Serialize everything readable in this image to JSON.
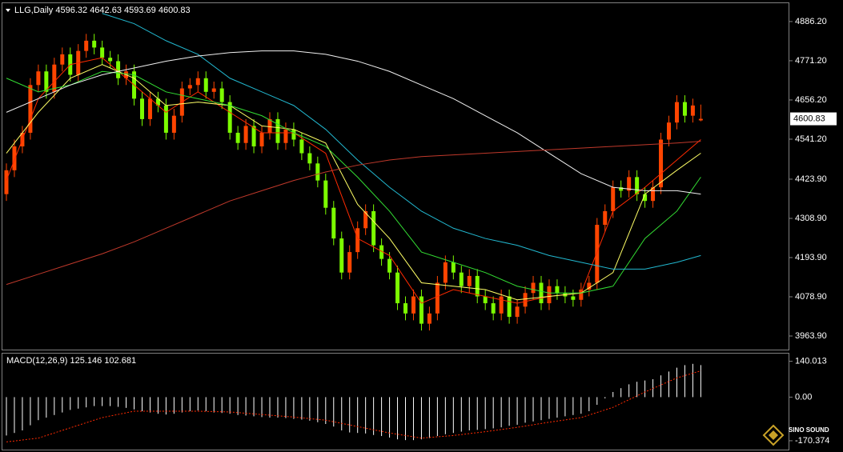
{
  "chart_data": [
    {
      "type": "candlestick",
      "symbol": "LLG,Daily",
      "header_ohlc": [
        4596.32,
        4642.63,
        4593.69,
        4600.83
      ],
      "last_price": 4600.83,
      "up_color": "#ff4500",
      "down_color": "#7cfc00",
      "open": [
        4380,
        4450,
        4520,
        4560,
        4700,
        4740,
        4680,
        4760,
        4790,
        4730,
        4800,
        4830,
        4810,
        4780,
        4770,
        4720,
        4740,
        4660,
        4600,
        4660,
        4640,
        4560,
        4610,
        4690,
        4700,
        4720,
        4680,
        4690,
        4650,
        4560,
        4530,
        4580,
        4520,
        4560,
        4600,
        4530,
        4570,
        4540,
        4500,
        4470,
        4420,
        4340,
        4250,
        4150,
        4210,
        4280,
        4330,
        4230,
        4190,
        4150,
        4060,
        4030,
        4080,
        4000,
        4030,
        4120,
        4180,
        4150,
        4110,
        4140,
        4080,
        4060,
        4030,
        4080,
        4020,
        4050,
        4090,
        4120,
        4060,
        4110,
        4090,
        4080,
        4070,
        4100,
        4120,
        4290,
        4330,
        4400,
        4390,
        4430,
        4380,
        4360,
        4400,
        4540,
        4590,
        4650,
        4610,
        4596.32
      ],
      "high": [
        4470,
        4540,
        4580,
        4720,
        4760,
        4760,
        4780,
        4810,
        4810,
        4820,
        4850,
        4850,
        4830,
        4800,
        4790,
        4760,
        4760,
        4680,
        4680,
        4680,
        4660,
        4630,
        4710,
        4720,
        4740,
        4740,
        4710,
        4710,
        4670,
        4580,
        4600,
        4600,
        4580,
        4620,
        4620,
        4590,
        4590,
        4560,
        4520,
        4490,
        4440,
        4360,
        4270,
        4230,
        4300,
        4350,
        4350,
        4250,
        4210,
        4170,
        4080,
        4100,
        4100,
        4050,
        4140,
        4200,
        4200,
        4170,
        4160,
        4160,
        4100,
        4080,
        4100,
        4100,
        4070,
        4110,
        4140,
        4140,
        4130,
        4130,
        4110,
        4100,
        4120,
        4140,
        4310,
        4350,
        4420,
        4420,
        4450,
        4450,
        4400,
        4420,
        4560,
        4610,
        4670,
        4670,
        4660,
        4642.63
      ],
      "low": [
        4360,
        4430,
        4500,
        4540,
        4680,
        4660,
        4660,
        4740,
        4710,
        4710,
        4780,
        4790,
        4760,
        4750,
        4700,
        4700,
        4640,
        4580,
        4580,
        4620,
        4540,
        4540,
        4590,
        4670,
        4680,
        4660,
        4660,
        4630,
        4540,
        4510,
        4510,
        4500,
        4500,
        4540,
        4510,
        4510,
        4520,
        4480,
        4450,
        4400,
        4320,
        4230,
        4130,
        4130,
        4190,
        4260,
        4210,
        4170,
        4130,
        4040,
        4010,
        4010,
        3980,
        3980,
        4010,
        4100,
        4130,
        4090,
        4090,
        4060,
        4040,
        4010,
        4010,
        4000,
        4000,
        4030,
        4070,
        4040,
        4040,
        4070,
        4060,
        4050,
        4050,
        4080,
        4100,
        4270,
        4310,
        4370,
        4370,
        4360,
        4340,
        4340,
        4380,
        4520,
        4570,
        4590,
        4590,
        4593.69
      ],
      "close": [
        4450,
        4520,
        4560,
        4700,
        4740,
        4680,
        4760,
        4790,
        4730,
        4800,
        4830,
        4810,
        4780,
        4770,
        4720,
        4740,
        4660,
        4600,
        4660,
        4640,
        4560,
        4610,
        4690,
        4700,
        4720,
        4680,
        4690,
        4650,
        4560,
        4530,
        4580,
        4520,
        4560,
        4600,
        4530,
        4570,
        4540,
        4500,
        4470,
        4420,
        4340,
        4250,
        4150,
        4210,
        4280,
        4330,
        4230,
        4190,
        4150,
        4060,
        4030,
        4080,
        4000,
        4030,
        4120,
        4180,
        4150,
        4110,
        4140,
        4080,
        4060,
        4030,
        4080,
        4020,
        4050,
        4090,
        4120,
        4060,
        4110,
        4090,
        4080,
        4070,
        4100,
        4120,
        4290,
        4330,
        4400,
        4390,
        4430,
        4380,
        4360,
        4400,
        4540,
        4590,
        4650,
        4610,
        4640,
        4600.83
      ],
      "lines": [
        {
          "color": "#ff2a00",
          "x": [
            0,
            4,
            8,
            12,
            16,
            20,
            24,
            28,
            32,
            36,
            40,
            44,
            48,
            52,
            56,
            60,
            64,
            68,
            72,
            76,
            80,
            84,
            87
          ],
          "values": [
            4420,
            4660,
            4760,
            4780,
            4700,
            4620,
            4680,
            4620,
            4560,
            4560,
            4500,
            4250,
            4200,
            4060,
            4100,
            4080,
            4060,
            4080,
            4090,
            4330,
            4400,
            4480,
            4540
          ]
        },
        {
          "color": "#ffff66",
          "x": [
            0,
            4,
            8,
            12,
            16,
            20,
            24,
            28,
            32,
            36,
            40,
            44,
            48,
            52,
            56,
            60,
            64,
            68,
            72,
            76,
            80,
            84,
            87
          ],
          "values": [
            4500,
            4620,
            4720,
            4760,
            4720,
            4640,
            4650,
            4640,
            4580,
            4570,
            4530,
            4350,
            4250,
            4120,
            4110,
            4100,
            4070,
            4080,
            4090,
            4150,
            4380,
            4450,
            4500
          ]
        },
        {
          "color": "#33dd33",
          "x": [
            0,
            4,
            8,
            12,
            16,
            20,
            24,
            28,
            32,
            36,
            40,
            44,
            48,
            52,
            56,
            60,
            64,
            68,
            72,
            76,
            80,
            84,
            87
          ],
          "values": [
            4720,
            4680,
            4700,
            4740,
            4730,
            4680,
            4660,
            4640,
            4610,
            4560,
            4520,
            4430,
            4330,
            4210,
            4180,
            4150,
            4110,
            4090,
            4090,
            4110,
            4250,
            4330,
            4430
          ]
        },
        {
          "color": "#22b8d0",
          "x": [
            12,
            16,
            20,
            24,
            28,
            32,
            36,
            40,
            44,
            48,
            52,
            56,
            60,
            64,
            68,
            72,
            76,
            80,
            84,
            87
          ],
          "values": [
            4910,
            4880,
            4830,
            4790,
            4720,
            4680,
            4640,
            4570,
            4480,
            4400,
            4330,
            4280,
            4250,
            4230,
            4200,
            4180,
            4160,
            4160,
            4180,
            4200
          ]
        },
        {
          "color": "#f0f0f0",
          "x": [
            0,
            4,
            8,
            12,
            16,
            20,
            24,
            28,
            32,
            36,
            40,
            44,
            48,
            52,
            56,
            60,
            64,
            68,
            72,
            76,
            80,
            84,
            87
          ],
          "values": [
            4620,
            4660,
            4700,
            4730,
            4750,
            4770,
            4785,
            4795,
            4800,
            4800,
            4790,
            4770,
            4740,
            4700,
            4660,
            4610,
            4560,
            4500,
            4440,
            4400,
            4390,
            4390,
            4380
          ]
        },
        {
          "color": "#c0392b",
          "x": [
            0,
            4,
            8,
            12,
            16,
            20,
            24,
            28,
            32,
            36,
            40,
            44,
            48,
            52,
            56,
            60,
            64,
            68,
            72,
            76,
            80,
            84,
            87
          ],
          "values": [
            4115,
            4145,
            4175,
            4205,
            4240,
            4280,
            4320,
            4360,
            4390,
            4420,
            4445,
            4465,
            4480,
            4490,
            4495,
            4500,
            4505,
            4510,
            4515,
            4520,
            4525,
            4530,
            4535
          ]
        }
      ],
      "ylim": [
        3924,
        4940
      ],
      "yticks": [
        {
          "value": 4886.2,
          "label": "4886.20"
        },
        {
          "value": 4771.2,
          "label": "4771.20"
        },
        {
          "value": 4656.2,
          "label": "4656.20"
        },
        {
          "value": 4541.2,
          "label": "4541.20"
        },
        {
          "value": 4423.9,
          "label": "4423.90"
        },
        {
          "value": 4308.9,
          "label": "4308.90"
        },
        {
          "value": 4193.9,
          "label": "4193.90"
        },
        {
          "value": 4078.9,
          "label": "4078.90"
        },
        {
          "value": 3963.9,
          "label": "3963.90"
        }
      ]
    },
    {
      "type": "histogram",
      "title": "MACD(12,26,9)",
      "color": "#ffffff",
      "values": [
        -150,
        -140,
        -130,
        -110,
        -90,
        -80,
        -70,
        -60,
        -50,
        -45,
        -40,
        -35,
        -35,
        -35,
        -38,
        -42,
        -48,
        -55,
        -60,
        -65,
        -68,
        -65,
        -60,
        -55,
        -52,
        -55,
        -60,
        -62,
        -65,
        -70,
        -72,
        -75,
        -78,
        -80,
        -80,
        -82,
        -85,
        -88,
        -92,
        -98,
        -105,
        -115,
        -130,
        -138,
        -140,
        -142,
        -148,
        -152,
        -158,
        -165,
        -168,
        -168,
        -165,
        -160,
        -152,
        -145,
        -140,
        -135,
        -130,
        -128,
        -125,
        -122,
        -118,
        -112,
        -108,
        -100,
        -95,
        -90,
        -85,
        -80,
        -75,
        -70,
        -65,
        -55,
        -30,
        -5,
        20,
        35,
        50,
        60,
        65,
        70,
        85,
        100,
        115,
        125,
        130,
        125.146
      ],
      "signal": {
        "color": "#ff2a00",
        "x": [
          0,
          4,
          8,
          12,
          16,
          20,
          24,
          28,
          32,
          36,
          40,
          44,
          48,
          52,
          56,
          60,
          64,
          68,
          72,
          76,
          80,
          84,
          87
        ],
        "values": [
          -175,
          -160,
          -120,
          -80,
          -55,
          -55,
          -55,
          -58,
          -68,
          -78,
          -90,
          -115,
          -140,
          -160,
          -150,
          -135,
          -118,
          -98,
          -80,
          -40,
          20,
          75,
          102.681
        ]
      },
      "ylim": [
        -205,
        170
      ],
      "yticks": [
        140.013,
        {
          "value": 0,
          "label": "0.00"
        },
        -170.374
      ],
      "watermark": "SINO SOUND"
    }
  ]
}
